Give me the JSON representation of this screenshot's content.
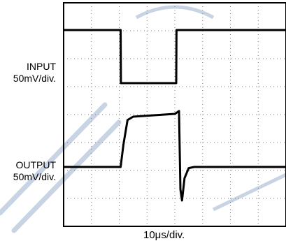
{
  "chart_data": {
    "type": "line",
    "title": "",
    "timebase": "10μs/div.",
    "colors": {
      "trace": "#000000",
      "grid": "#7a7a7a",
      "background": "#ffffff",
      "watermark": "#c8d3e4"
    },
    "grid": true,
    "divisions": {
      "x": 8,
      "y": 8
    },
    "x_unit": "μs",
    "series": [
      {
        "name": "INPUT",
        "scale": "50mV/div.",
        "x": [
          0,
          20.5,
          20.6,
          40.5,
          40.6,
          80
        ],
        "y": [
          100,
          100,
          0,
          0,
          100,
          100
        ]
      },
      {
        "name": "OUTPUT",
        "scale": "50mV/div.",
        "x": [
          0,
          20.5,
          21.5,
          23,
          25,
          40,
          41.5,
          42,
          42.6,
          43.5,
          45,
          47,
          80
        ],
        "y": [
          0,
          0,
          40,
          84,
          90,
          95,
          100,
          -40,
          -60,
          -20,
          -2,
          0,
          0
        ]
      }
    ],
    "xlim": [
      0,
      80
    ],
    "ylim": [
      -100,
      100
    ]
  },
  "labels": {
    "input_name": "INPUT",
    "input_scale": "50mV/div.",
    "output_name": "OUTPUT",
    "output_scale": "50mV/div."
  }
}
